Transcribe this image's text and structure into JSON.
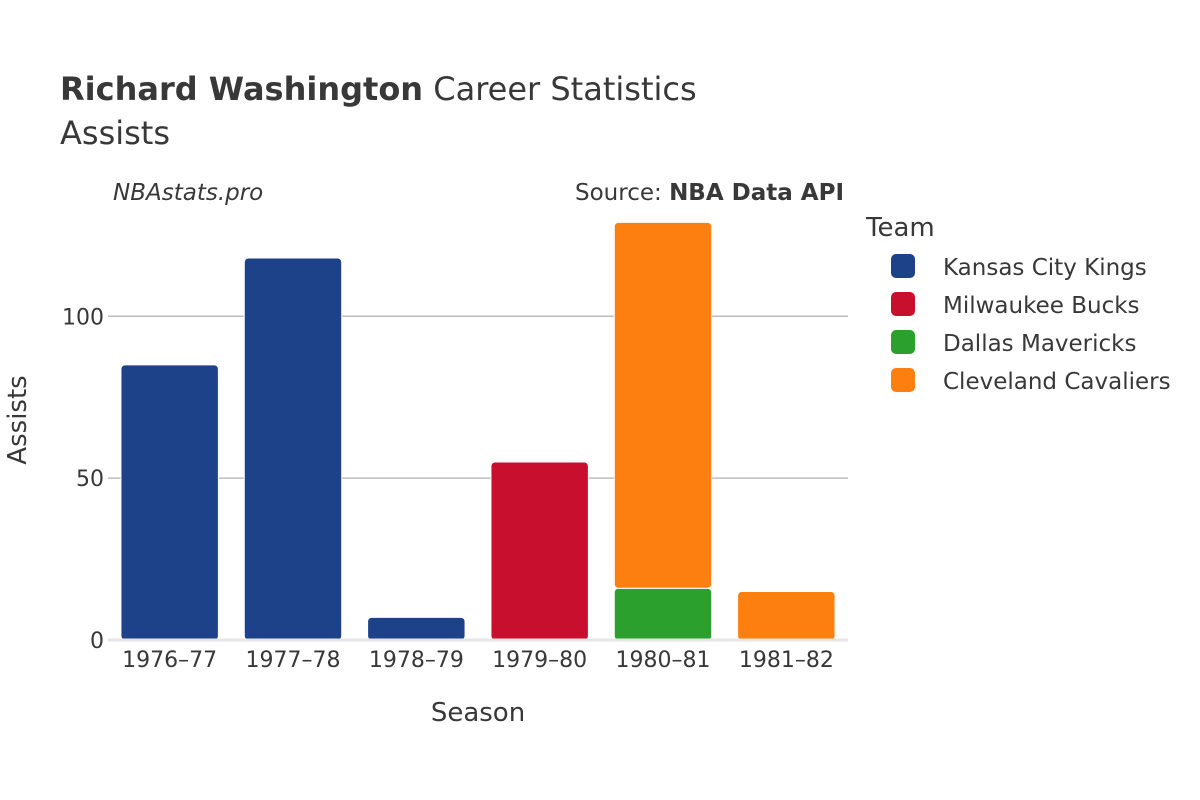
{
  "header": {
    "title_player": "Richard Washington",
    "title_rest": " Career Statistics",
    "subtitle": "Assists",
    "watermark": "NBAstats.pro",
    "source_prefix": "Source: ",
    "source_name": "NBA Data API"
  },
  "chart_data": {
    "type": "bar",
    "stacked": true,
    "categories": [
      "1976–77",
      "1977–78",
      "1978–79",
      "1979–80",
      "1980–81",
      "1981–82"
    ],
    "series": [
      {
        "name": "Kansas City Kings",
        "color": "#1d428a",
        "values": [
          85,
          118,
          7,
          0,
          0,
          0
        ]
      },
      {
        "name": "Milwaukee Bucks",
        "color": "#c8102e",
        "values": [
          0,
          0,
          0,
          55,
          0,
          0
        ]
      },
      {
        "name": "Dallas Mavericks",
        "color": "#2ca02c",
        "values": [
          0,
          0,
          0,
          0,
          16,
          0
        ]
      },
      {
        "name": "Cleveland Cavaliers",
        "color": "#fd7f0f",
        "values": [
          0,
          0,
          0,
          0,
          113,
          15
        ]
      }
    ],
    "xlabel": "Season",
    "ylabel": "Assists",
    "ylim": [
      0,
      139
    ],
    "yticks": [
      0,
      50,
      100
    ],
    "grid": true,
    "legend_title": "Team",
    "legend_position": "right"
  }
}
